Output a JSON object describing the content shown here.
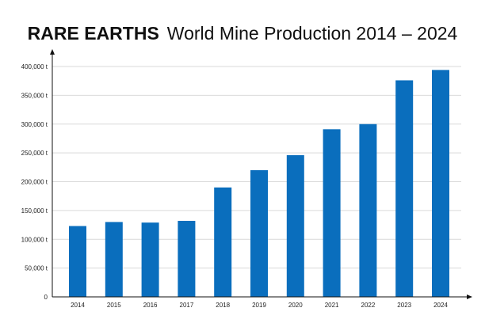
{
  "title_bold": "RARE EARTHS",
  "title_rest": "World Mine Production 2014 – 2024",
  "colors": {
    "bar": "#0a6ebd",
    "grid": "#d9d9d9",
    "axis": "#111111"
  },
  "chart_data": {
    "type": "bar",
    "categories": [
      "2014",
      "2015",
      "2016",
      "2017",
      "2018",
      "2019",
      "2020",
      "2021",
      "2022",
      "2023",
      "2024"
    ],
    "values": [
      123000,
      130000,
      129000,
      132000,
      190000,
      220000,
      246000,
      291000,
      300000,
      376000,
      394000
    ],
    "ylim": [
      0,
      400000
    ],
    "yticks": [
      0,
      50000,
      100000,
      150000,
      200000,
      250000,
      300000,
      350000,
      400000
    ],
    "ytick_labels": [
      "0",
      "50,000 t",
      "100,000 t",
      "150,000 t",
      "200,000 t",
      "250,000 t",
      "300,000 t",
      "350,000 t",
      "400,000 t"
    ],
    "grid": true,
    "title": "RARE EARTHS World Mine Production 2014 – 2024",
    "xlabel": "",
    "ylabel": ""
  }
}
